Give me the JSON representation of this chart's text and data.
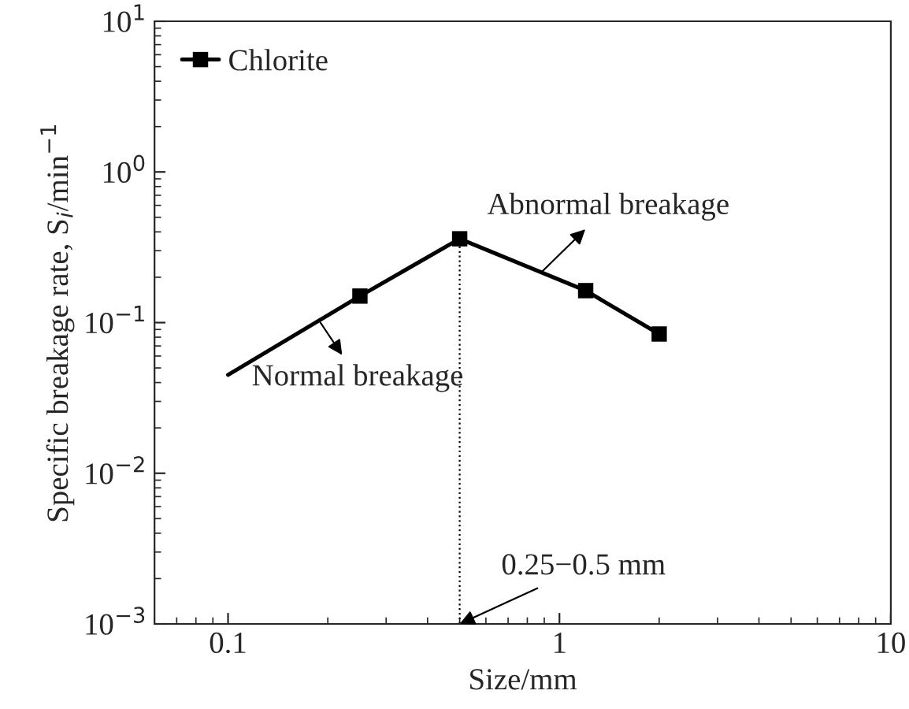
{
  "chart_data": {
    "type": "line",
    "xlabel": "Size/mm",
    "ylabel": "Specific breakage rate, S$_{i}$/min$^{−1}$",
    "log": "xy",
    "xlim": [
      0.06,
      10
    ],
    "xticks": [
      {
        "value": 0.1,
        "label": "0.1"
      },
      {
        "value": 1,
        "label": "1"
      },
      {
        "value": 10,
        "label": "10"
      }
    ],
    "ylim": [
      0.001,
      10
    ],
    "yticks": [
      {
        "value": 0.001,
        "label": "10$^{−3}$"
      },
      {
        "value": 0.01,
        "label": "10$^{−2}$"
      },
      {
        "value": 0.1,
        "label": "10$^{−1}$"
      },
      {
        "value": 1,
        "label": "10$^{0}$"
      },
      {
        "value": 10,
        "label": "10$^{1}$"
      }
    ],
    "grid": false,
    "legend": "top left",
    "series": [
      {
        "color": "#000000",
        "x": [
          0.1,
          0.25
        ],
        "values": [
          0.045,
          0.15
        ],
        "line_style": "solid"
      },
      {
        "name": "Chlorite",
        "color": "#000000",
        "x": [
          0.25,
          0.5,
          1.2,
          2
        ],
        "values": [
          0.15,
          0.36,
          0.163,
          0.084
        ],
        "marker": "square",
        "line_style": "solid"
      },
      {
        "color": "#000000",
        "x": [
          0.5,
          0.5
        ],
        "values": [
          0.001,
          0.36
        ],
        "marker": "none",
        "line_style": "dotted"
      }
    ],
    "annotations": [
      {
        "text": "Abnormal breakage",
        "x": 0.89,
        "y": 0.22
      },
      {
        "text": "Normal breakage",
        "x": 0.19,
        "y": 0.1
      },
      {
        "text": "0.25−0.5 mm",
        "x": 0.5,
        "y": 0.001
      }
    ]
  }
}
